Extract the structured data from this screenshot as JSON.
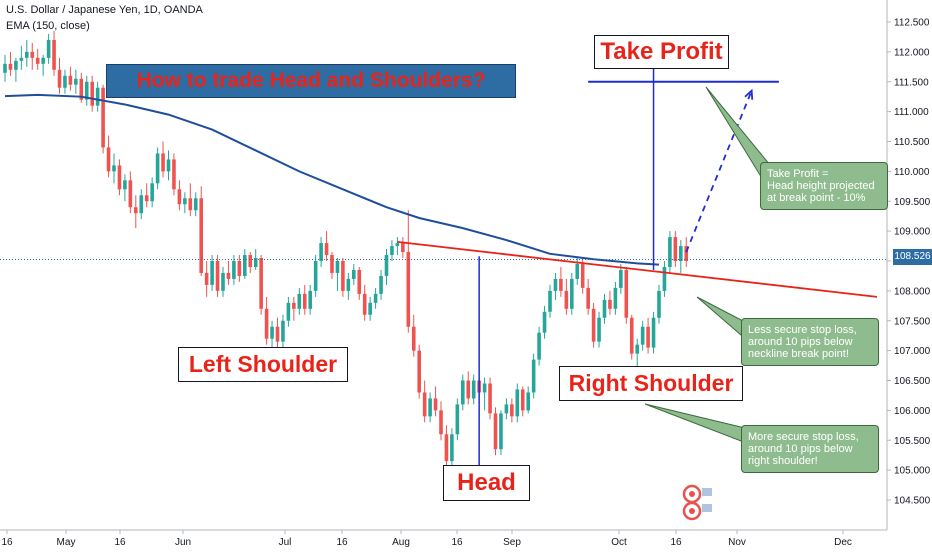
{
  "header": {
    "symbol_line": "U.S. Dollar / Japanese Yen, 1D, OANDA",
    "indicator_line": "EMA (150, close)"
  },
  "title_banner": "How to trade Head and Shoulders?",
  "labels": {
    "take_profit": "Take Profit",
    "left_shoulder": "Left Shoulder",
    "head": "Head",
    "right_shoulder": "Right Shoulder"
  },
  "notes": {
    "take_profit": "Take Profit =\nHead height projected\nat break point - 10%",
    "less_secure": "Less secure stop loss,\naround 10 pips below\nneckline break point!",
    "more_secure": "More secure stop loss,\naround 10 pips below\nright shoulder!"
  },
  "last_price": "108.526",
  "colors": {
    "up_candle": "#26a69a",
    "down_candle": "#ef5350",
    "ema": "#1f4e9c",
    "neckline": "#e8241a",
    "projection": "#1d2dd4",
    "title_bg": "#2e6da4",
    "title_text": "#e8241a",
    "label_text": "#e8241a",
    "note_bg": "#8fbc8f"
  },
  "icons": [
    "chart-logo-icon"
  ],
  "chart_data": {
    "type": "candlestick",
    "ylim": [
      104.3,
      112.7
    ],
    "y_ticks": [
      "112.500",
      "112.000",
      "111.500",
      "111.000",
      "110.500",
      "110.000",
      "109.500",
      "109.000",
      "108.500",
      "108.000",
      "107.500",
      "107.000",
      "106.500",
      "106.000",
      "105.500",
      "105.000",
      "104.500"
    ],
    "x_ticks": [
      "16",
      "May",
      "16",
      "Jun",
      "Jul",
      "16",
      "Aug",
      "16",
      "Sep",
      "Oct",
      "16",
      "Nov",
      "Dec"
    ],
    "candles": [
      {
        "o": 111.65,
        "h": 111.95,
        "l": 111.5,
        "c": 111.8
      },
      {
        "o": 111.8,
        "h": 112.0,
        "l": 111.6,
        "c": 111.7
      },
      {
        "o": 111.7,
        "h": 111.9,
        "l": 111.5,
        "c": 111.85
      },
      {
        "o": 111.85,
        "h": 112.1,
        "l": 111.7,
        "c": 111.9
      },
      {
        "o": 111.9,
        "h": 112.2,
        "l": 111.75,
        "c": 112.0
      },
      {
        "o": 112.0,
        "h": 112.15,
        "l": 111.7,
        "c": 111.9
      },
      {
        "o": 111.9,
        "h": 112.05,
        "l": 111.7,
        "c": 111.8
      },
      {
        "o": 111.8,
        "h": 111.95,
        "l": 111.6,
        "c": 111.9
      },
      {
        "o": 111.9,
        "h": 112.3,
        "l": 111.8,
        "c": 112.2
      },
      {
        "o": 112.2,
        "h": 112.35,
        "l": 111.6,
        "c": 111.7
      },
      {
        "o": 111.7,
        "h": 111.9,
        "l": 111.3,
        "c": 111.4
      },
      {
        "o": 111.4,
        "h": 111.7,
        "l": 111.3,
        "c": 111.6
      },
      {
        "o": 111.6,
        "h": 111.75,
        "l": 111.35,
        "c": 111.45
      },
      {
        "o": 111.45,
        "h": 111.7,
        "l": 111.3,
        "c": 111.55
      },
      {
        "o": 111.55,
        "h": 111.65,
        "l": 111.15,
        "c": 111.2
      },
      {
        "o": 111.2,
        "h": 111.6,
        "l": 111.1,
        "c": 111.5
      },
      {
        "o": 111.5,
        "h": 111.6,
        "l": 111.0,
        "c": 111.1
      },
      {
        "o": 111.1,
        "h": 111.5,
        "l": 111.0,
        "c": 111.4
      },
      {
        "o": 111.4,
        "h": 111.45,
        "l": 110.3,
        "c": 110.4
      },
      {
        "o": 110.4,
        "h": 110.6,
        "l": 109.9,
        "c": 110.0
      },
      {
        "o": 110.0,
        "h": 110.3,
        "l": 109.8,
        "c": 110.1
      },
      {
        "o": 110.1,
        "h": 110.2,
        "l": 109.6,
        "c": 109.7
      },
      {
        "o": 109.7,
        "h": 109.95,
        "l": 109.5,
        "c": 109.85
      },
      {
        "o": 109.85,
        "h": 110.0,
        "l": 109.3,
        "c": 109.4
      },
      {
        "o": 109.4,
        "h": 109.6,
        "l": 109.05,
        "c": 109.3
      },
      {
        "o": 109.3,
        "h": 109.7,
        "l": 109.2,
        "c": 109.6
      },
      {
        "o": 109.6,
        "h": 109.8,
        "l": 109.4,
        "c": 109.5
      },
      {
        "o": 109.5,
        "h": 109.9,
        "l": 109.4,
        "c": 109.8
      },
      {
        "o": 109.8,
        "h": 110.4,
        "l": 109.7,
        "c": 110.3
      },
      {
        "o": 110.3,
        "h": 110.5,
        "l": 109.9,
        "c": 110.0
      },
      {
        "o": 110.0,
        "h": 110.35,
        "l": 109.85,
        "c": 110.2
      },
      {
        "o": 110.2,
        "h": 110.3,
        "l": 109.6,
        "c": 109.7
      },
      {
        "o": 109.7,
        "h": 109.85,
        "l": 109.35,
        "c": 109.45
      },
      {
        "o": 109.45,
        "h": 109.65,
        "l": 109.3,
        "c": 109.55
      },
      {
        "o": 109.55,
        "h": 109.8,
        "l": 109.25,
        "c": 109.35
      },
      {
        "o": 109.35,
        "h": 109.65,
        "l": 109.25,
        "c": 109.55
      },
      {
        "o": 109.55,
        "h": 109.75,
        "l": 108.25,
        "c": 108.3
      },
      {
        "o": 108.3,
        "h": 108.5,
        "l": 107.9,
        "c": 108.1
      },
      {
        "o": 108.1,
        "h": 108.6,
        "l": 108.0,
        "c": 108.5
      },
      {
        "o": 108.5,
        "h": 108.6,
        "l": 107.9,
        "c": 108.0
      },
      {
        "o": 108.0,
        "h": 108.4,
        "l": 107.9,
        "c": 108.3
      },
      {
        "o": 108.3,
        "h": 108.5,
        "l": 108.1,
        "c": 108.2
      },
      {
        "o": 108.2,
        "h": 108.6,
        "l": 108.1,
        "c": 108.5
      },
      {
        "o": 108.5,
        "h": 108.6,
        "l": 108.15,
        "c": 108.25
      },
      {
        "o": 108.25,
        "h": 108.7,
        "l": 108.2,
        "c": 108.6
      },
      {
        "o": 108.6,
        "h": 108.65,
        "l": 108.3,
        "c": 108.4
      },
      {
        "o": 108.4,
        "h": 108.7,
        "l": 108.35,
        "c": 108.55
      },
      {
        "o": 108.55,
        "h": 108.6,
        "l": 107.6,
        "c": 107.7
      },
      {
        "o": 107.7,
        "h": 107.9,
        "l": 107.1,
        "c": 107.2
      },
      {
        "o": 107.2,
        "h": 107.5,
        "l": 107.05,
        "c": 107.4
      },
      {
        "o": 107.4,
        "h": 107.55,
        "l": 107.0,
        "c": 107.15
      },
      {
        "o": 107.15,
        "h": 107.6,
        "l": 107.05,
        "c": 107.5
      },
      {
        "o": 107.5,
        "h": 107.9,
        "l": 107.4,
        "c": 107.8
      },
      {
        "o": 107.8,
        "h": 107.9,
        "l": 107.5,
        "c": 107.7
      },
      {
        "o": 107.7,
        "h": 108.05,
        "l": 107.6,
        "c": 107.95
      },
      {
        "o": 107.95,
        "h": 108.1,
        "l": 107.6,
        "c": 107.7
      },
      {
        "o": 107.7,
        "h": 108.1,
        "l": 107.6,
        "c": 108.0
      },
      {
        "o": 108.0,
        "h": 108.6,
        "l": 107.9,
        "c": 108.5
      },
      {
        "o": 108.5,
        "h": 108.9,
        "l": 108.4,
        "c": 108.8
      },
      {
        "o": 108.8,
        "h": 109.0,
        "l": 108.5,
        "c": 108.6
      },
      {
        "o": 108.6,
        "h": 108.65,
        "l": 108.2,
        "c": 108.3
      },
      {
        "o": 108.3,
        "h": 108.55,
        "l": 108.0,
        "c": 108.5
      },
      {
        "o": 108.5,
        "h": 108.55,
        "l": 107.9,
        "c": 108.0
      },
      {
        "o": 108.0,
        "h": 108.3,
        "l": 107.85,
        "c": 108.2
      },
      {
        "o": 108.2,
        "h": 108.45,
        "l": 108.1,
        "c": 108.35
      },
      {
        "o": 108.35,
        "h": 108.4,
        "l": 107.85,
        "c": 107.95
      },
      {
        "o": 107.95,
        "h": 108.1,
        "l": 107.5,
        "c": 107.6
      },
      {
        "o": 107.6,
        "h": 107.9,
        "l": 107.5,
        "c": 107.8
      },
      {
        "o": 107.8,
        "h": 108.05,
        "l": 107.7,
        "c": 107.95
      },
      {
        "o": 107.95,
        "h": 108.35,
        "l": 107.85,
        "c": 108.25
      },
      {
        "o": 108.25,
        "h": 108.7,
        "l": 108.1,
        "c": 108.6
      },
      {
        "o": 108.6,
        "h": 108.85,
        "l": 108.5,
        "c": 108.75
      },
      {
        "o": 108.75,
        "h": 108.9,
        "l": 108.6,
        "c": 108.8
      },
      {
        "o": 108.8,
        "h": 108.9,
        "l": 108.55,
        "c": 108.65
      },
      {
        "o": 108.65,
        "h": 109.35,
        "l": 107.3,
        "c": 107.4
      },
      {
        "o": 107.4,
        "h": 107.6,
        "l": 106.9,
        "c": 107.0
      },
      {
        "o": 107.0,
        "h": 107.1,
        "l": 106.2,
        "c": 106.3
      },
      {
        "o": 106.3,
        "h": 106.5,
        "l": 105.8,
        "c": 105.9
      },
      {
        "o": 105.9,
        "h": 106.3,
        "l": 105.8,
        "c": 106.2
      },
      {
        "o": 106.2,
        "h": 106.4,
        "l": 105.9,
        "c": 106.0
      },
      {
        "o": 106.0,
        "h": 106.15,
        "l": 105.5,
        "c": 105.6
      },
      {
        "o": 105.6,
        "h": 105.75,
        "l": 105.0,
        "c": 105.15
      },
      {
        "o": 105.15,
        "h": 105.7,
        "l": 105.05,
        "c": 105.6
      },
      {
        "o": 105.6,
        "h": 106.2,
        "l": 105.5,
        "c": 106.1
      },
      {
        "o": 106.1,
        "h": 106.6,
        "l": 106.0,
        "c": 106.5
      },
      {
        "o": 106.5,
        "h": 106.65,
        "l": 106.1,
        "c": 106.2
      },
      {
        "o": 106.2,
        "h": 106.6,
        "l": 106.1,
        "c": 106.5
      },
      {
        "o": 106.5,
        "h": 106.6,
        "l": 106.2,
        "c": 106.3
      },
      {
        "o": 106.3,
        "h": 106.55,
        "l": 106.0,
        "c": 106.45
      },
      {
        "o": 106.45,
        "h": 106.55,
        "l": 105.85,
        "c": 105.95
      },
      {
        "o": 105.95,
        "h": 106.05,
        "l": 105.25,
        "c": 105.35
      },
      {
        "o": 105.35,
        "h": 106.0,
        "l": 105.25,
        "c": 105.95
      },
      {
        "o": 105.95,
        "h": 106.2,
        "l": 105.85,
        "c": 106.1
      },
      {
        "o": 106.1,
        "h": 106.2,
        "l": 105.8,
        "c": 105.9
      },
      {
        "o": 105.9,
        "h": 106.45,
        "l": 105.8,
        "c": 106.35
      },
      {
        "o": 106.35,
        "h": 106.4,
        "l": 105.9,
        "c": 106.0
      },
      {
        "o": 106.0,
        "h": 106.4,
        "l": 105.95,
        "c": 106.3
      },
      {
        "o": 106.3,
        "h": 106.95,
        "l": 106.2,
        "c": 106.85
      },
      {
        "o": 106.85,
        "h": 107.4,
        "l": 106.75,
        "c": 107.3
      },
      {
        "o": 107.3,
        "h": 107.75,
        "l": 107.2,
        "c": 107.65
      },
      {
        "o": 107.65,
        "h": 108.1,
        "l": 107.55,
        "c": 108.0
      },
      {
        "o": 108.0,
        "h": 108.3,
        "l": 107.85,
        "c": 108.2
      },
      {
        "o": 108.2,
        "h": 108.4,
        "l": 107.9,
        "c": 108.0
      },
      {
        "o": 108.0,
        "h": 108.2,
        "l": 107.6,
        "c": 107.7
      },
      {
        "o": 107.7,
        "h": 108.3,
        "l": 107.6,
        "c": 108.2
      },
      {
        "o": 108.2,
        "h": 108.55,
        "l": 108.1,
        "c": 108.45
      },
      {
        "o": 108.45,
        "h": 108.55,
        "l": 107.95,
        "c": 108.05
      },
      {
        "o": 108.05,
        "h": 108.2,
        "l": 107.6,
        "c": 107.7
      },
      {
        "o": 107.7,
        "h": 107.8,
        "l": 107.05,
        "c": 107.15
      },
      {
        "o": 107.15,
        "h": 107.65,
        "l": 107.05,
        "c": 107.55
      },
      {
        "o": 107.55,
        "h": 107.95,
        "l": 107.45,
        "c": 107.85
      },
      {
        "o": 107.85,
        "h": 108.0,
        "l": 107.6,
        "c": 107.7
      },
      {
        "o": 107.7,
        "h": 108.15,
        "l": 107.6,
        "c": 108.05
      },
      {
        "o": 108.05,
        "h": 108.45,
        "l": 107.95,
        "c": 108.35
      },
      {
        "o": 108.35,
        "h": 108.4,
        "l": 107.45,
        "c": 107.55
      },
      {
        "o": 107.55,
        "h": 107.6,
        "l": 106.85,
        "c": 106.95
      },
      {
        "o": 106.95,
        "h": 107.2,
        "l": 106.7,
        "c": 107.1
      },
      {
        "o": 107.1,
        "h": 107.5,
        "l": 107.0,
        "c": 107.4
      },
      {
        "o": 107.4,
        "h": 107.55,
        "l": 106.95,
        "c": 107.05
      },
      {
        "o": 107.05,
        "h": 107.65,
        "l": 106.95,
        "c": 107.55
      },
      {
        "o": 107.55,
        "h": 108.1,
        "l": 107.45,
        "c": 108.0
      },
      {
        "o": 108.0,
        "h": 108.5,
        "l": 107.9,
        "c": 108.4
      },
      {
        "o": 108.4,
        "h": 109.0,
        "l": 108.3,
        "c": 108.9
      },
      {
        "o": 108.9,
        "h": 109.0,
        "l": 108.4,
        "c": 108.5
      },
      {
        "o": 108.5,
        "h": 108.85,
        "l": 108.3,
        "c": 108.75
      },
      {
        "o": 108.75,
        "h": 108.9,
        "l": 108.4,
        "c": 108.5
      }
    ],
    "ema_150": [
      {
        "i": 0,
        "v": 111.26
      },
      {
        "i": 6,
        "v": 111.28
      },
      {
        "i": 14,
        "v": 111.25
      },
      {
        "i": 22,
        "v": 111.12
      },
      {
        "i": 30,
        "v": 110.95
      },
      {
        "i": 38,
        "v": 110.7
      },
      {
        "i": 46,
        "v": 110.35
      },
      {
        "i": 54,
        "v": 110.0
      },
      {
        "i": 62,
        "v": 109.7
      },
      {
        "i": 70,
        "v": 109.4
      },
      {
        "i": 76,
        "v": 109.22
      },
      {
        "i": 84,
        "v": 109.05
      },
      {
        "i": 92,
        "v": 108.85
      },
      {
        "i": 100,
        "v": 108.62
      },
      {
        "i": 108,
        "v": 108.53
      },
      {
        "i": 116,
        "v": 108.46
      },
      {
        "i": 120,
        "v": 108.44
      }
    ],
    "neckline": [
      {
        "i": 72,
        "v": 108.82
      },
      {
        "i": 160,
        "v": 107.9
      }
    ],
    "head_marker": {
      "i": 87,
      "top": 108.58,
      "bottom": 105.0
    },
    "breakout": {
      "i": 119,
      "top": 111.85,
      "bottom": 108.35
    },
    "take_profit_line": {
      "i_start": 107,
      "i_end": 142,
      "v": 111.5
    },
    "projection_arrow": {
      "from": {
        "i": 125,
        "v": 108.65
      },
      "to": {
        "i": 137,
        "v": 111.35
      }
    }
  }
}
